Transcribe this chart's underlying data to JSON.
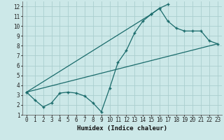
{
  "xlabel": "Humidex (Indice chaleur)",
  "bg_color": "#cce8e8",
  "grid_color": "#aacece",
  "line_color": "#1a6b6b",
  "xlim": [
    -0.5,
    23.5
  ],
  "ylim": [
    1,
    12.5
  ],
  "xticks": [
    0,
    1,
    2,
    3,
    4,
    5,
    6,
    7,
    8,
    9,
    10,
    11,
    12,
    13,
    14,
    15,
    16,
    17,
    18,
    19,
    20,
    21,
    22,
    23
  ],
  "yticks": [
    1,
    2,
    3,
    4,
    5,
    6,
    7,
    8,
    9,
    10,
    11,
    12
  ],
  "line1_x": [
    0,
    1,
    2,
    3,
    4,
    5,
    6,
    7,
    8,
    9,
    10,
    11,
    12,
    13,
    14,
    15,
    16,
    17
  ],
  "line1_y": [
    3.3,
    2.5,
    1.8,
    2.2,
    3.2,
    3.3,
    3.2,
    2.9,
    2.2,
    1.3,
    3.7,
    6.3,
    7.5,
    9.3,
    10.5,
    11.2,
    11.8,
    12.2
  ],
  "line2_x": [
    0,
    15,
    16,
    17,
    18,
    19,
    20,
    21,
    22,
    23
  ],
  "line2_y": [
    3.3,
    11.2,
    11.8,
    10.5,
    9.8,
    9.5,
    9.5,
    9.5,
    8.5,
    8.2
  ],
  "line3_x": [
    0,
    23
  ],
  "line3_y": [
    3.3,
    8.2
  ]
}
